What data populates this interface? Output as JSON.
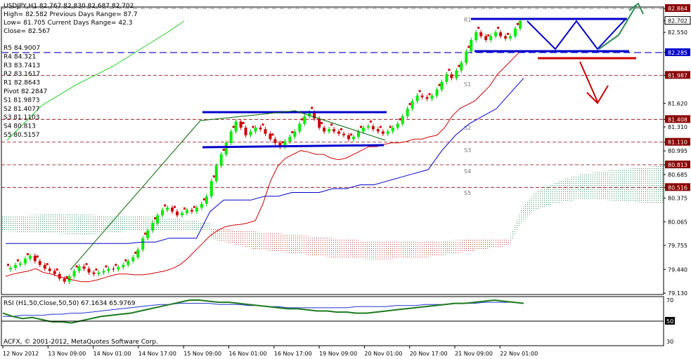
{
  "header": {
    "symbol_line": "USDJPY,H1  82.767 82.830 82.687 82.702",
    "high_line": "High= 82.582   Previous Days Range= 87.7",
    "low_line": "Low= 81.705   Current Days Range= 42.3",
    "close_line": "Close= 82.567"
  },
  "pivots": [
    {
      "label": "R5 84.9007"
    },
    {
      "label": "R4 84.321"
    },
    {
      "label": "R3 83.7413"
    },
    {
      "label": "R2 83.1617"
    },
    {
      "label": "R1 82.8643"
    },
    {
      "label": "Pivot 82.2847"
    },
    {
      "label": "S1 81.9873"
    },
    {
      "label": "S2 81.4077"
    },
    {
      "label": "S3 81.1103"
    },
    {
      "label": "S4 80.813"
    },
    {
      "label": "S5 80.5157"
    }
  ],
  "level_tags": [
    "R1",
    "S1",
    "S2",
    "S3",
    "S4",
    "S5"
  ],
  "price_badges": [
    "82.864",
    "82.702",
    "82.285",
    "81.987",
    "81.408",
    "81.110",
    "80.813",
    "80.516"
  ],
  "rsi": {
    "label": "RSI (H1,50,Close,50,50) 67.1634 65.9769",
    "ticks": [
      "70",
      "50",
      "30"
    ]
  },
  "footer": "ACFX, © 2001-2012, MetaQuotes Software Corp.",
  "chart_data": {
    "type": "line",
    "title": "USDJPY,H1",
    "x_ticks": [
      "12 Nov 2012",
      "13 Nov 09:00",
      "14 Nov 01:00",
      "14 Nov 17:00",
      "15 Nov 09:00",
      "16 Nov 01:00",
      "16 Nov 17:00",
      "19 Nov 09:00",
      "20 Nov 01:00",
      "20 Nov 17:00",
      "21 Nov 09:00",
      "22 Nov 01:00"
    ],
    "y_ticks": [
      82.864,
      82.702,
      82.55,
      82.285,
      81.987,
      81.62,
      81.408,
      81.31,
      81.11,
      80.995,
      80.813,
      80.685,
      80.516,
      80.375,
      80.065,
      79.755,
      79.44,
      79.13
    ],
    "ylim": [
      79.13,
      82.864
    ],
    "levels": [
      {
        "name": "R1",
        "value": 82.864,
        "color": "#555555"
      },
      {
        "name": "Pivot",
        "value": 82.285,
        "color": "#0000cc"
      },
      {
        "name": "S1",
        "value": 81.987,
        "color": "#8b0000"
      },
      {
        "name": "S2",
        "value": 81.408,
        "color": "#8b0000"
      },
      {
        "name": "S3",
        "value": 81.11,
        "color": "#8b0000"
      },
      {
        "name": "S4",
        "value": 80.813,
        "color": "#8b0000"
      },
      {
        "name": "S5",
        "value": 80.516,
        "color": "#8b0000"
      }
    ],
    "close": [
      79.44,
      79.46,
      79.5,
      79.52,
      79.58,
      79.62,
      79.55,
      79.5,
      79.45,
      79.42,
      79.38,
      79.32,
      79.28,
      79.35,
      79.42,
      79.48,
      79.45,
      79.4,
      79.38,
      79.4,
      79.42,
      79.45,
      79.44,
      79.47,
      79.5,
      79.55,
      79.6,
      79.7,
      79.85,
      79.95,
      80.05,
      80.15,
      80.22,
      80.25,
      80.2,
      80.15,
      80.18,
      80.22,
      80.2,
      80.25,
      80.3,
      80.4,
      80.6,
      80.8,
      80.95,
      81.1,
      81.25,
      81.38,
      81.3,
      81.2,
      81.25,
      81.3,
      81.28,
      81.22,
      81.15,
      81.1,
      81.05,
      81.12,
      81.18,
      81.25,
      81.35,
      81.45,
      81.5,
      81.42,
      81.3,
      81.25,
      81.28,
      81.25,
      81.22,
      81.2,
      81.15,
      81.18,
      81.25,
      81.3,
      81.32,
      81.28,
      81.25,
      81.22,
      81.25,
      81.3,
      81.35,
      81.45,
      81.55,
      81.65,
      81.72,
      81.7,
      81.68,
      81.72,
      81.8,
      81.9,
      82.0,
      81.95,
      82.05,
      82.15,
      82.3,
      82.45,
      82.55,
      82.5,
      82.45,
      82.5,
      82.55,
      82.5,
      82.47,
      82.5,
      82.6,
      82.7
    ],
    "red_line": [
      79.35,
      79.38,
      79.4,
      79.42,
      79.45,
      79.4,
      79.38,
      79.35,
      79.32,
      79.3,
      79.28,
      79.28,
      79.3,
      79.33,
      79.36,
      79.38,
      79.38,
      79.37,
      79.37,
      79.38,
      79.4,
      79.42,
      79.45,
      79.5,
      79.58,
      79.68,
      79.78,
      79.88,
      79.95,
      80.0,
      80.02,
      80.03,
      80.05,
      80.08,
      80.3,
      80.6,
      80.8,
      80.9,
      80.95,
      81.0,
      80.98,
      80.95,
      80.95,
      80.9,
      80.88,
      80.9,
      80.95,
      81.0,
      81.05,
      81.05,
      81.08,
      81.1,
      81.1,
      81.12,
      81.15,
      81.15,
      81.18,
      81.2,
      81.3,
      81.45,
      81.55,
      81.6,
      81.65,
      81.75,
      81.85,
      82.0,
      82.1,
      82.2,
      82.3
    ],
    "blue_line": [
      79.78,
      79.78,
      79.78,
      79.78,
      79.78,
      79.78,
      79.78,
      79.78,
      79.78,
      79.78,
      79.8,
      79.8,
      79.85,
      79.85,
      79.85,
      80.2,
      80.35,
      80.35,
      80.35,
      80.4,
      80.4,
      80.45,
      80.45,
      80.45,
      80.5,
      80.5,
      80.55,
      80.55,
      80.6,
      80.65,
      80.7,
      80.75,
      81.0,
      81.2,
      81.35,
      81.45,
      81.55,
      81.75,
      81.95
    ],
    "rsi_green": [
      58,
      55,
      53,
      54,
      52,
      50,
      50,
      49,
      51,
      53,
      55,
      56,
      57,
      58,
      60,
      62,
      64,
      66,
      68,
      70,
      70,
      69,
      68,
      68,
      67,
      66,
      65,
      64,
      63,
      62,
      62,
      61,
      60,
      60,
      59,
      59,
      58,
      58,
      59,
      60,
      61,
      62,
      63,
      64,
      65,
      66,
      67,
      67,
      68,
      69,
      70,
      69,
      68,
      67
    ],
    "rsi_blue": [
      55,
      55,
      56,
      56,
      56,
      57,
      57,
      58,
      58,
      59,
      60,
      61,
      62,
      63,
      64,
      65,
      66,
      66,
      67,
      67,
      67,
      67,
      66,
      66,
      66,
      65,
      65,
      64,
      64,
      63,
      63,
      63,
      63,
      63,
      63,
      63,
      64,
      64,
      64,
      64,
      65,
      65,
      65,
      66,
      66,
      66,
      67,
      67,
      67,
      68,
      68,
      68,
      68,
      67
    ],
    "rsi_ylim": [
      30,
      70
    ]
  }
}
